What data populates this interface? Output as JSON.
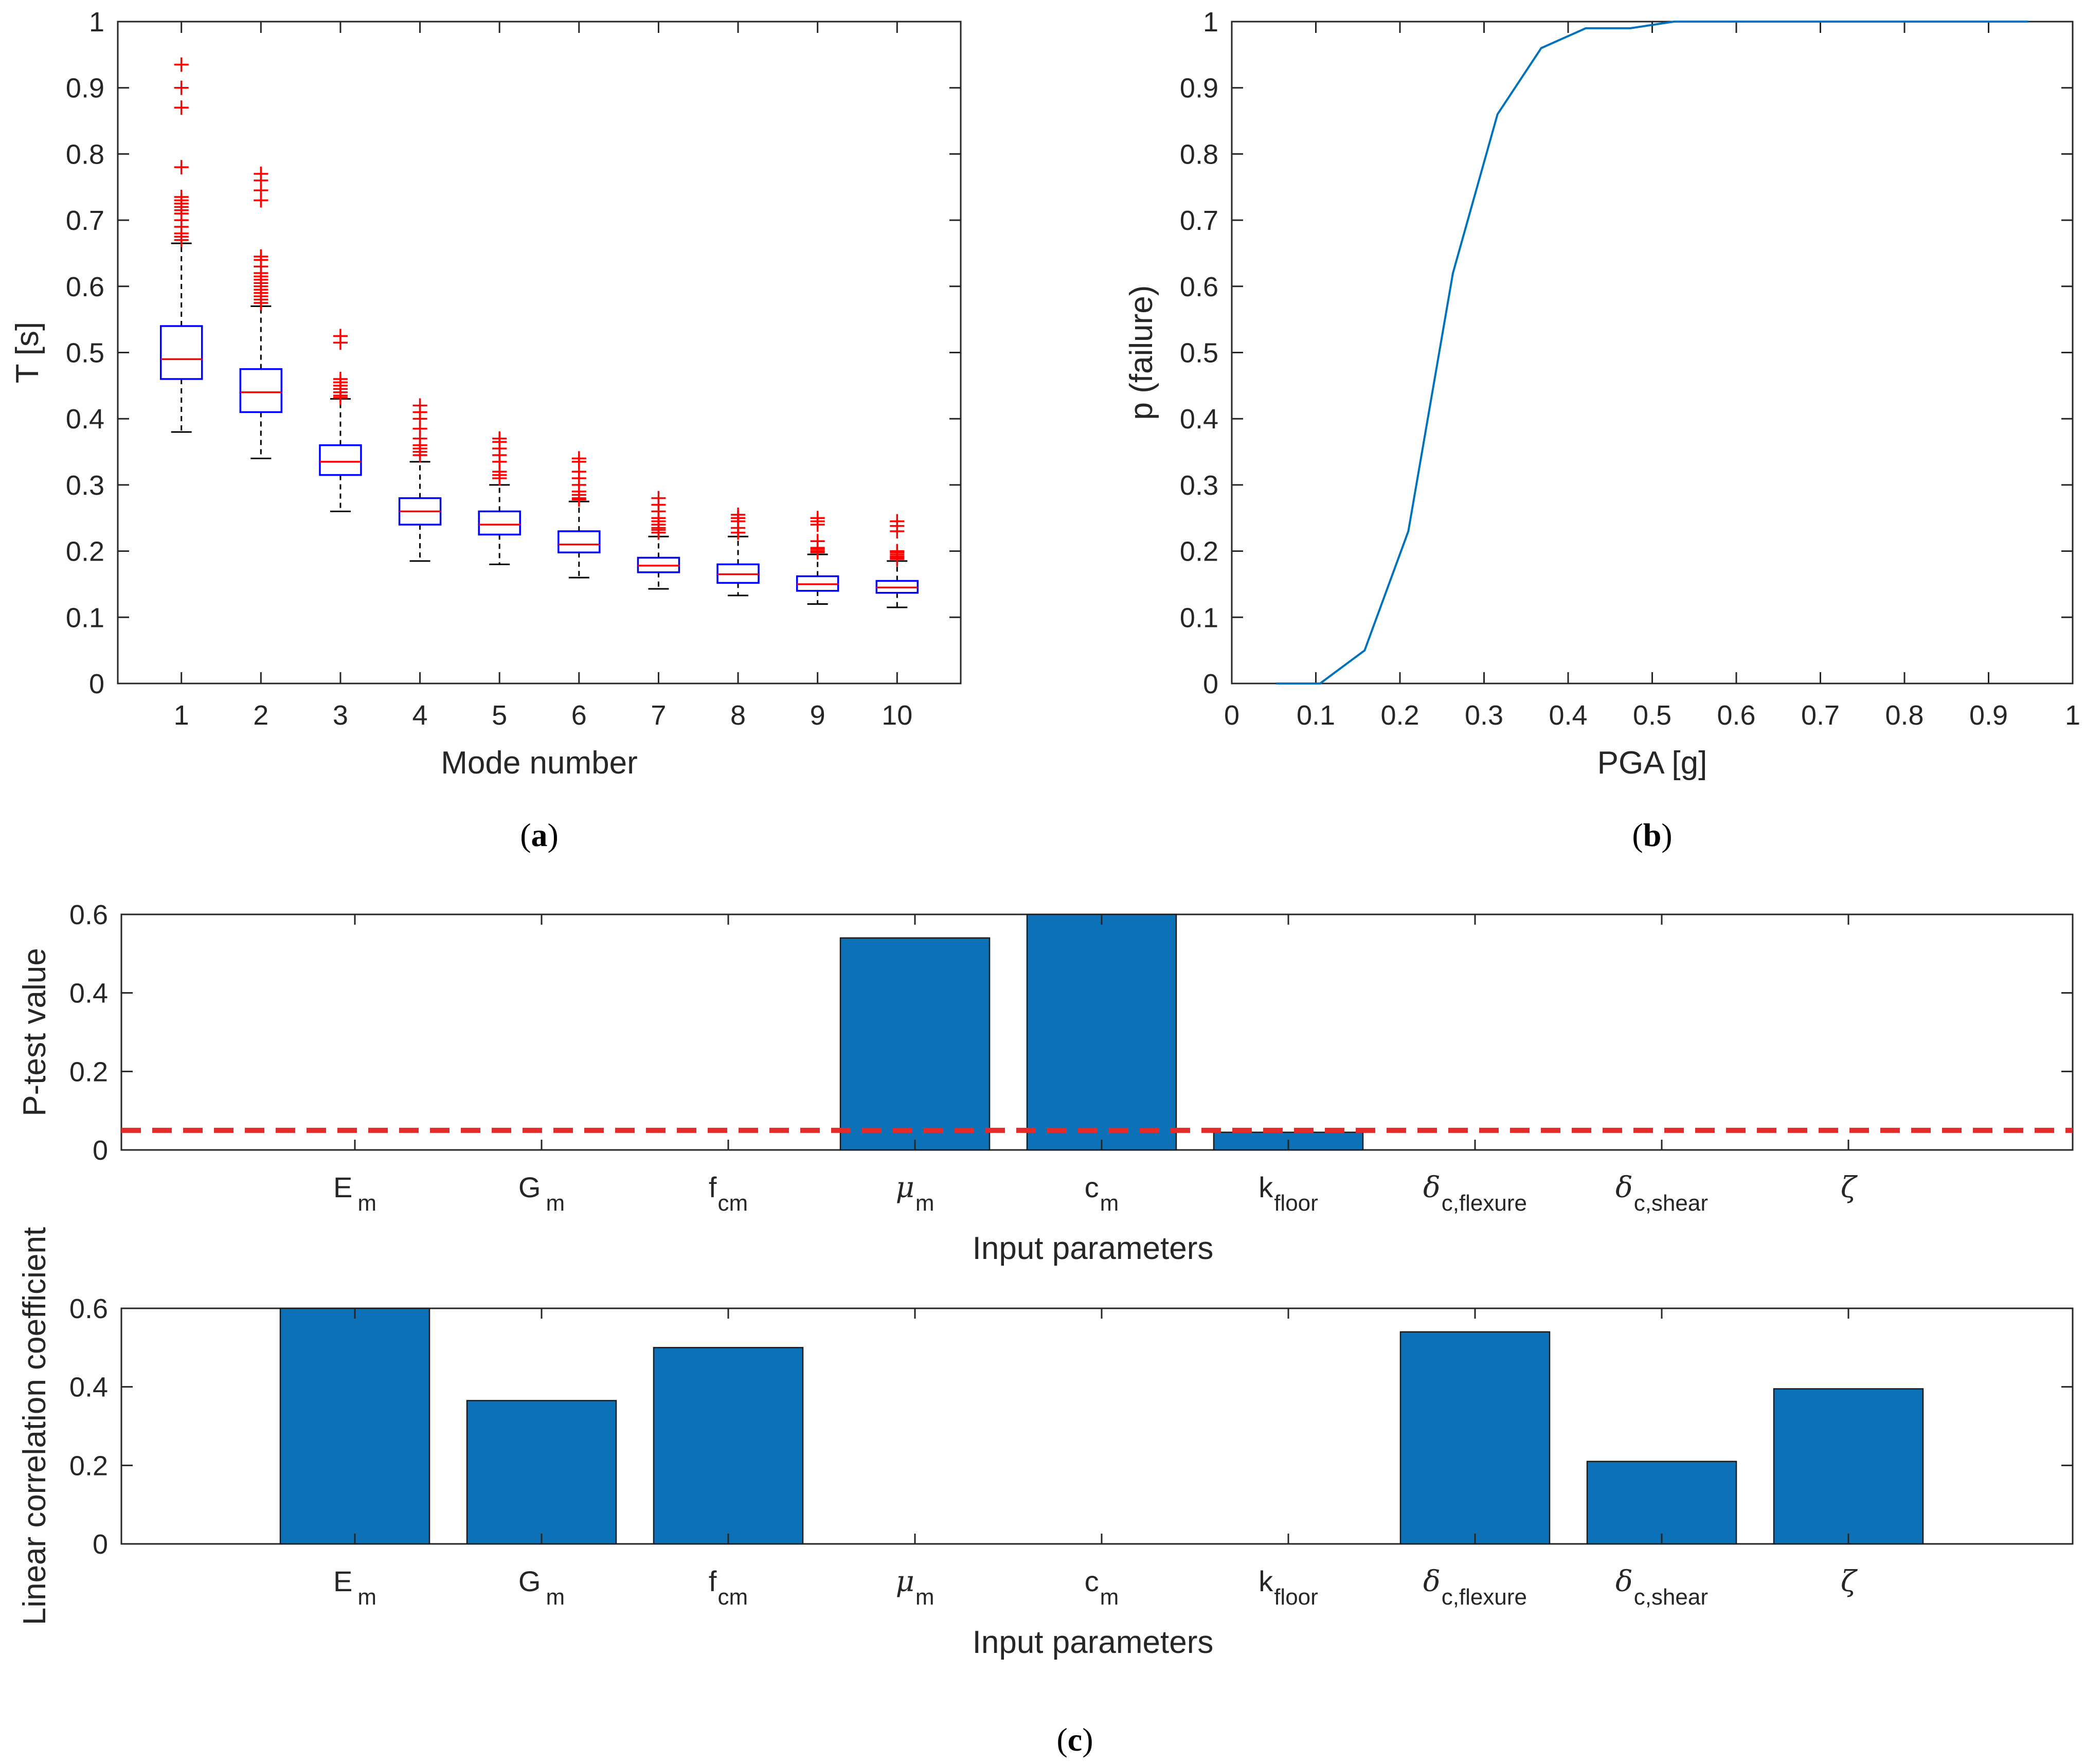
{
  "chart_data": [
    {
      "id": "a",
      "type": "boxplot",
      "caption": "a",
      "xlabel": "Mode number",
      "ylabel": "T [s]",
      "ylim": [
        0,
        1
      ],
      "yticks": [
        "0",
        "0.1",
        "0.2",
        "0.3",
        "0.4",
        "0.5",
        "0.6",
        "0.7",
        "0.8",
        "0.9",
        "1"
      ],
      "categories": [
        "1",
        "2",
        "3",
        "4",
        "5",
        "6",
        "7",
        "8",
        "9",
        "10"
      ],
      "colors": {
        "box": "#0000ff",
        "median": "#ff0000",
        "whisker": "#000000",
        "outlier": "#ff0000"
      },
      "boxes": [
        {
          "min": 0.38,
          "q1": 0.46,
          "median": 0.49,
          "q3": 0.54,
          "max": 0.665,
          "outliers": [
            0.67,
            0.675,
            0.68,
            0.69,
            0.7,
            0.71,
            0.715,
            0.72,
            0.725,
            0.73,
            0.735,
            0.78,
            0.87,
            0.9,
            0.935
          ]
        },
        {
          "min": 0.34,
          "q1": 0.41,
          "median": 0.44,
          "q3": 0.475,
          "max": 0.57,
          "outliers": [
            0.575,
            0.58,
            0.585,
            0.59,
            0.595,
            0.6,
            0.605,
            0.61,
            0.615,
            0.62,
            0.63,
            0.64,
            0.645,
            0.73,
            0.745,
            0.76,
            0.77
          ]
        },
        {
          "min": 0.26,
          "q1": 0.315,
          "median": 0.335,
          "q3": 0.36,
          "max": 0.43,
          "outliers": [
            0.432,
            0.435,
            0.44,
            0.445,
            0.45,
            0.455,
            0.46,
            0.515,
            0.525
          ]
        },
        {
          "min": 0.185,
          "q1": 0.24,
          "median": 0.26,
          "q3": 0.28,
          "max": 0.335,
          "outliers": [
            0.345,
            0.35,
            0.355,
            0.36,
            0.37,
            0.385,
            0.4,
            0.41,
            0.42
          ]
        },
        {
          "min": 0.18,
          "q1": 0.225,
          "median": 0.24,
          "q3": 0.26,
          "max": 0.3,
          "outliers": [
            0.31,
            0.315,
            0.32,
            0.335,
            0.345,
            0.355,
            0.365,
            0.37
          ]
        },
        {
          "min": 0.16,
          "q1": 0.198,
          "median": 0.21,
          "q3": 0.23,
          "max": 0.275,
          "outliers": [
            0.278,
            0.28,
            0.285,
            0.29,
            0.3,
            0.31,
            0.32,
            0.335,
            0.34
          ]
        },
        {
          "min": 0.143,
          "q1": 0.168,
          "median": 0.178,
          "q3": 0.19,
          "max": 0.222,
          "outliers": [
            0.228,
            0.232,
            0.235,
            0.24,
            0.245,
            0.25,
            0.26,
            0.27,
            0.28
          ]
        },
        {
          "min": 0.133,
          "q1": 0.152,
          "median": 0.165,
          "q3": 0.18,
          "max": 0.222,
          "outliers": [
            0.228,
            0.235,
            0.245,
            0.25,
            0.255
          ]
        },
        {
          "min": 0.12,
          "q1": 0.14,
          "median": 0.15,
          "q3": 0.162,
          "max": 0.195,
          "outliers": [
            0.198,
            0.2,
            0.203,
            0.205,
            0.215,
            0.24,
            0.245,
            0.25
          ]
        },
        {
          "min": 0.115,
          "q1": 0.137,
          "median": 0.145,
          "q3": 0.155,
          "max": 0.185,
          "outliers": [
            0.188,
            0.19,
            0.192,
            0.195,
            0.198,
            0.2,
            0.23,
            0.238,
            0.245
          ]
        }
      ]
    },
    {
      "id": "b",
      "type": "line",
      "caption": "b",
      "xlabel": "PGA [g]",
      "ylabel": "p (failure)",
      "xlim": [
        0,
        1
      ],
      "ylim": [
        0,
        1
      ],
      "xticks": [
        "0",
        "0.1",
        "0.2",
        "0.3",
        "0.4",
        "0.5",
        "0.6",
        "0.7",
        "0.8",
        "0.9",
        "1"
      ],
      "yticks": [
        "0",
        "0.1",
        "0.2",
        "0.3",
        "0.4",
        "0.5",
        "0.6",
        "0.7",
        "0.8",
        "0.9",
        "1"
      ],
      "line_color": "#0072bd",
      "x": [
        0.053,
        0.105,
        0.158,
        0.21,
        0.263,
        0.316,
        0.368,
        0.421,
        0.474,
        0.526,
        0.579,
        0.632,
        0.684,
        0.737,
        0.789,
        0.842,
        0.895,
        0.947
      ],
      "y": [
        0,
        0,
        0.05,
        0.23,
        0.62,
        0.86,
        0.96,
        0.99,
        0.99,
        1,
        1,
        1,
        1,
        1,
        1,
        1,
        1,
        1
      ]
    },
    {
      "id": "c-top",
      "type": "bar",
      "xlabel": "Input parameters",
      "ylabel": "P-test value",
      "ylim": [
        0,
        0.6
      ],
      "yticks": [
        "0",
        "0.2",
        "0.4",
        "0.6"
      ],
      "bar_color": "#0c71b7",
      "threshold": 0.05,
      "threshold_color": "#e52a2a",
      "categories": [
        {
          "base": "E",
          "sub": "m",
          "greek": false
        },
        {
          "base": "G",
          "sub": "m",
          "greek": false
        },
        {
          "base": "f",
          "sub": "cm",
          "greek": false
        },
        {
          "base": "μ",
          "sub": "m",
          "greek": true
        },
        {
          "base": "c",
          "sub": "m",
          "greek": false
        },
        {
          "base": "k",
          "sub": "floor",
          "greek": false
        },
        {
          "base": "δ",
          "sub": "c,flexure",
          "greek": true
        },
        {
          "base": "δ",
          "sub": "c,shear",
          "greek": true
        },
        {
          "base": "ζ",
          "sub": "",
          "greek": true
        }
      ],
      "values": [
        0,
        0,
        0,
        0.54,
        0.6,
        0.045,
        0,
        0,
        0
      ]
    },
    {
      "id": "c-bottom",
      "type": "bar",
      "caption": "c",
      "xlabel": "Input parameters",
      "ylabel": "Linear correlation coefficient",
      "ylim": [
        0,
        0.6
      ],
      "yticks": [
        "0",
        "0.2",
        "0.4",
        "0.6"
      ],
      "bar_color": "#0c71b7",
      "categories": [
        {
          "base": "E",
          "sub": "m",
          "greek": false
        },
        {
          "base": "G",
          "sub": "m",
          "greek": false
        },
        {
          "base": "f",
          "sub": "cm",
          "greek": false
        },
        {
          "base": "μ",
          "sub": "m",
          "greek": true
        },
        {
          "base": "c",
          "sub": "m",
          "greek": false
        },
        {
          "base": "k",
          "sub": "floor",
          "greek": false
        },
        {
          "base": "δ",
          "sub": "c,flexure",
          "greek": true
        },
        {
          "base": "δ",
          "sub": "c,shear",
          "greek": true
        },
        {
          "base": "ζ",
          "sub": "",
          "greek": true
        }
      ],
      "values": [
        0.6,
        0.365,
        0.5,
        0,
        0,
        0,
        0.54,
        0.21,
        0.395
      ]
    }
  ]
}
